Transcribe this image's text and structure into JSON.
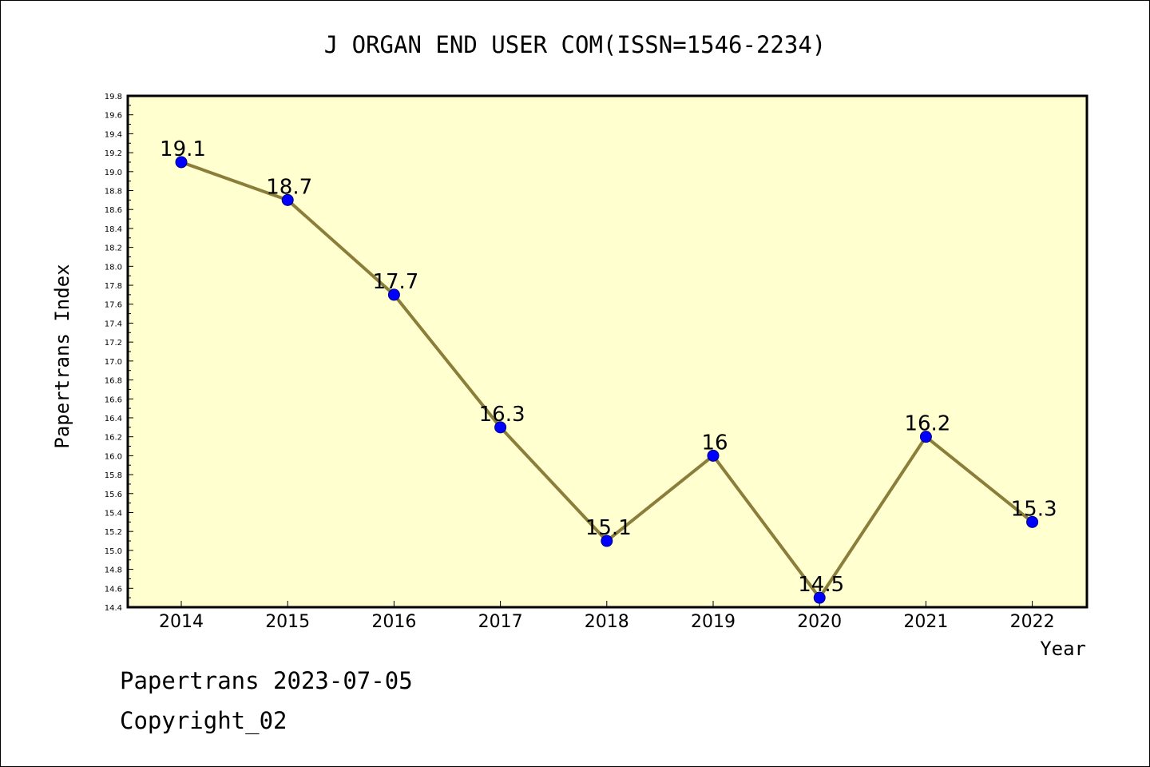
{
  "chart_data": {
    "type": "line",
    "title": "J ORGAN END USER COM(ISSN=1546-2234)",
    "xlabel": "Year",
    "ylabel": "Papertrans Index",
    "categories": [
      "2014",
      "2015",
      "2016",
      "2017",
      "2018",
      "2019",
      "2020",
      "2021",
      "2022"
    ],
    "series": [
      {
        "values": [
          19.1,
          18.7,
          17.7,
          16.3,
          15.1,
          16.0,
          14.5,
          16.2,
          15.3
        ]
      }
    ],
    "data_labels": [
      "19.1",
      "18.7",
      "17.7",
      "16.3",
      "15.1",
      "16",
      "14.5",
      "16.2",
      "15.3"
    ],
    "ylim": [
      14.4,
      19.8
    ],
    "y_ticks": [
      "14.4",
      "14.6",
      "14.8",
      "15.0",
      "15.2",
      "15.4",
      "15.6",
      "15.8",
      "16.0",
      "16.2",
      "16.4",
      "16.6",
      "16.8",
      "17.0",
      "17.2",
      "17.4",
      "17.6",
      "17.8",
      "18.0",
      "18.2",
      "18.4",
      "18.6",
      "18.8",
      "19.0",
      "19.2",
      "19.4",
      "19.6",
      "19.8"
    ],
    "grid": false,
    "colors": {
      "plot_background": "#ffffd0",
      "line": "#8b7d3a",
      "marker": "#0000ff"
    }
  },
  "footer": {
    "date_line": "Papertrans 2023-07-05",
    "copyright": "Copyright_02"
  }
}
